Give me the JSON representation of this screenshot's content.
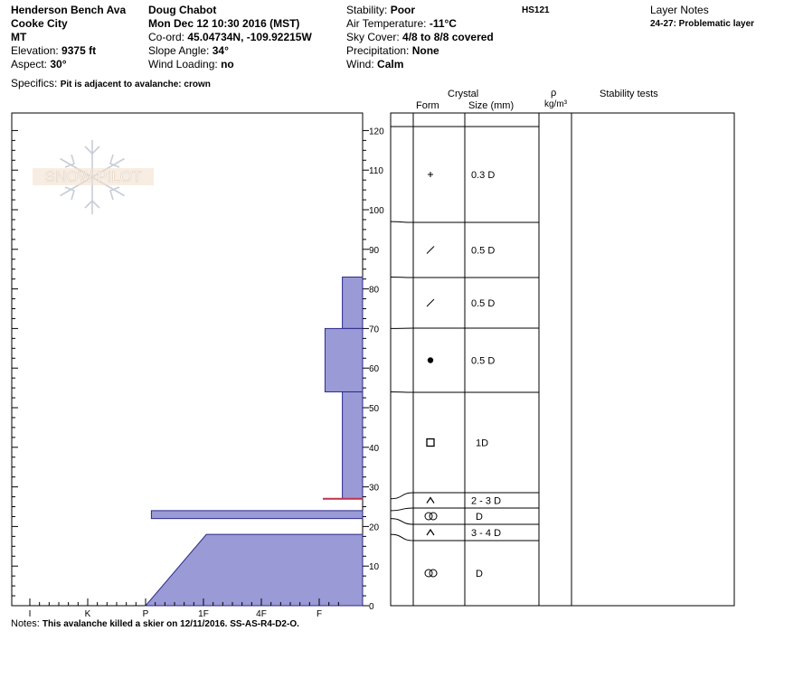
{
  "header": {
    "col1": {
      "location": "Henderson Bench Ava",
      "area": "Cooke City",
      "state": "MT",
      "elevation_label": "Elevation:",
      "elevation_value": "9375 ft",
      "aspect_label": "Aspect:",
      "aspect_value": "30°"
    },
    "col2": {
      "observer": "Doug Chabot",
      "datetime": "Mon Dec 12 10:30 2016 (MST)",
      "coord_label": "Co-ord:",
      "coord_value": "45.04734N, -109.92215W",
      "slope_label": "Slope Angle:",
      "slope_value": "34°",
      "wind_loading_label": "Wind Loading:",
      "wind_loading_value": "no"
    },
    "col3": {
      "stability_label": "Stability:",
      "stability_value": "Poor",
      "air_temp_label": "Air Temperature:",
      "air_temp_value": "-11°C",
      "sky_label": "Sky Cover:",
      "sky_value": "4/8 to 8/8 covered",
      "precip_label": "Precipitation:",
      "precip_value": "None",
      "wind_label": "Wind:",
      "wind_value": "Calm"
    },
    "code": "HS121",
    "layer_notes_title": "Layer Notes",
    "layer_notes_value": "24-27: Problematic layer",
    "specifics_label": "Specifics:",
    "specifics_value": "Pit is adjacent to avalanche: crown"
  },
  "logo_text": "SNOW PILOT",
  "table_headers": {
    "crystal": "Crystal",
    "form": "Form",
    "size": "Size (mm)",
    "rho": "ρ",
    "density_unit": "kg/m³",
    "stability_tests": "Stability tests"
  },
  "notes_label": "Notes:",
  "notes_value": "This avalanche killed a skier on 12/11/2016. SS-AS-R4-D2-O.",
  "colors": {
    "hardness_fill": "#9a9ad6",
    "hardness_stroke": "#2a2a8a",
    "weak_layer": "#c0304a"
  },
  "chart_data": {
    "type": "snow_profile_hardness",
    "y_axis": {
      "label": "",
      "range": [
        0,
        125
      ],
      "ticks": [
        0,
        10,
        20,
        30,
        40,
        50,
        60,
        70,
        80,
        90,
        100,
        110,
        120
      ]
    },
    "x_axis": {
      "categories": [
        "I",
        "K",
        "P",
        "1F",
        "4F",
        "F"
      ],
      "hardness_scale": [
        0,
        1,
        2,
        3,
        4,
        5,
        6
      ]
    },
    "layers": [
      {
        "top": 121,
        "bottom": 97,
        "hardness": 6.6
      },
      {
        "top": 97,
        "bottom": 83,
        "hardness": 6.0
      },
      {
        "top": 83,
        "bottom": 70,
        "hardness": 5.4
      },
      {
        "top": 70,
        "bottom": 54,
        "hardness": 5.1
      },
      {
        "top": 54,
        "bottom": 27,
        "hardness": 5.4
      },
      {
        "top": 27,
        "bottom": 24,
        "hardness": 6.6
      },
      {
        "top": 24,
        "bottom": 22,
        "hardness": 2.1
      },
      {
        "top": 22,
        "bottom": 18,
        "hardness": 6.6
      },
      {
        "top": 18,
        "bottom": 0,
        "hardness_top": 3.05,
        "hardness_bottom": 2.0
      }
    ],
    "weak_layer_depth": 27,
    "crystals": [
      {
        "top": 121,
        "bottom": 97,
        "mid": 108,
        "symbol": "+",
        "size": "0.3 D"
      },
      {
        "top": 97,
        "bottom": 83,
        "mid": 90,
        "symbol": "/",
        "size": "0.5 D"
      },
      {
        "top": 83,
        "bottom": 70,
        "mid": 76.5,
        "symbol": "/",
        "size": "0.5 D"
      },
      {
        "top": 70,
        "bottom": 54,
        "mid": 62,
        "symbol": "●",
        "size": "0.5 D"
      },
      {
        "top": 54,
        "bottom": 27,
        "mid": 41,
        "symbol": "□",
        "size": "1D"
      },
      {
        "top": 27,
        "bottom": 24,
        "mid": 26,
        "symbol": "^",
        "size": "2 - 3 D"
      },
      {
        "top": 24,
        "bottom": 22,
        "mid": 23,
        "symbol": "©",
        "size": "D"
      },
      {
        "top": 22,
        "bottom": 18,
        "mid": 19,
        "symbol": "^",
        "size": "3 - 4 D"
      },
      {
        "top": 18,
        "bottom": 0,
        "mid": 8,
        "symbol": "©",
        "size": "D"
      }
    ]
  }
}
